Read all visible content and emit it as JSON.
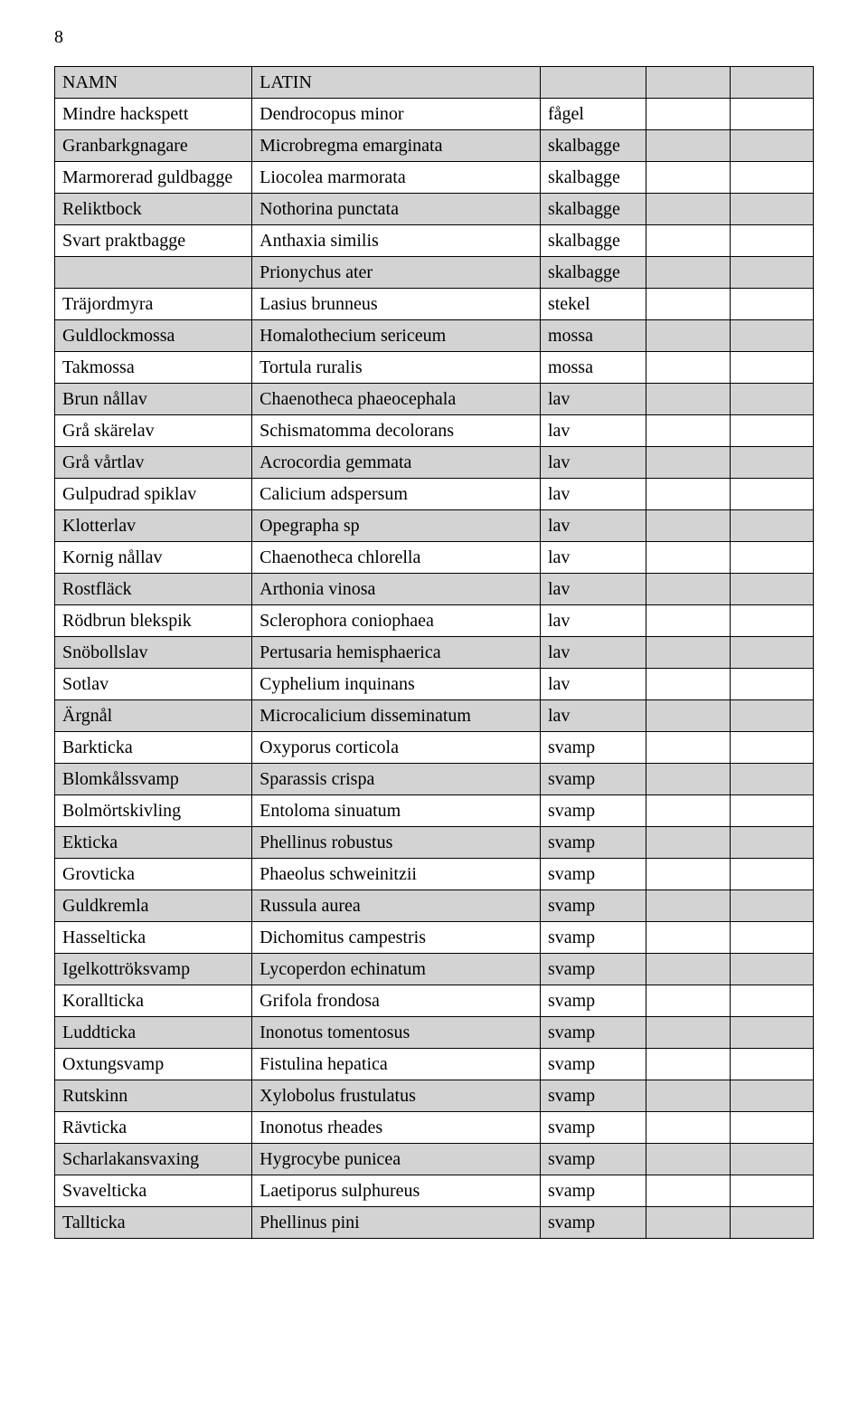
{
  "page_number": "8",
  "headers": {
    "col1": "NAMN",
    "col2": "LATIN",
    "col3": "",
    "col4": "",
    "col5": ""
  },
  "colors": {
    "shaded_bg": "#d3d3d3",
    "border": "#000000",
    "page_bg": "#ffffff"
  },
  "rows": [
    {
      "shaded": false,
      "name": "Mindre hackspett",
      "latin": "Dendrocopus minor",
      "cat": "fågel"
    },
    {
      "shaded": true,
      "name": "Granbarkgnagare",
      "latin": "Microbregma emarginata",
      "cat": "skalbagge"
    },
    {
      "shaded": false,
      "name": "Marmorerad guldbagge",
      "latin": "Liocolea marmorata",
      "cat": "skalbagge"
    },
    {
      "shaded": true,
      "name": "Reliktbock",
      "latin": "Nothorina punctata",
      "cat": "skalbagge"
    },
    {
      "shaded": false,
      "name": "Svart praktbagge",
      "latin": "Anthaxia similis",
      "cat": "skalbagge"
    },
    {
      "shaded": true,
      "name": "",
      "latin": "Prionychus ater",
      "cat": "skalbagge"
    },
    {
      "shaded": false,
      "name": "Träjordmyra",
      "latin": "Lasius brunneus",
      "cat": "stekel"
    },
    {
      "shaded": true,
      "name": "Guldlockmossa",
      "latin": "Homalothecium sericeum",
      "cat": "mossa"
    },
    {
      "shaded": false,
      "name": "Takmossa",
      "latin": "Tortula ruralis",
      "cat": "mossa"
    },
    {
      "shaded": true,
      "name": "Brun nållav",
      "latin": "Chaenotheca phaeocephala",
      "cat": "lav"
    },
    {
      "shaded": false,
      "name": "Grå skärelav",
      "latin": "Schismatomma decolorans",
      "cat": "lav"
    },
    {
      "shaded": true,
      "name": "Grå vårtlav",
      "latin": "Acrocordia gemmata",
      "cat": "lav"
    },
    {
      "shaded": false,
      "name": "Gulpudrad spiklav",
      "latin": "Calicium adspersum",
      "cat": "lav"
    },
    {
      "shaded": true,
      "name": "Klotterlav",
      "latin": "Opegrapha sp",
      "cat": "lav"
    },
    {
      "shaded": false,
      "name": "Kornig nållav",
      "latin": "Chaenotheca chlorella",
      "cat": "lav"
    },
    {
      "shaded": true,
      "name": "Rostfläck",
      "latin": "Arthonia vinosa",
      "cat": "lav"
    },
    {
      "shaded": false,
      "name": "Rödbrun blekspik",
      "latin": "Sclerophora coniophaea",
      "cat": "lav"
    },
    {
      "shaded": true,
      "name": "Snöbollslav",
      "latin": "Pertusaria hemisphaerica",
      "cat": "lav"
    },
    {
      "shaded": false,
      "name": "Sotlav",
      "latin": "Cyphelium inquinans",
      "cat": "lav"
    },
    {
      "shaded": true,
      "name": "Ärgnål",
      "latin": "Microcalicium disseminatum",
      "cat": "lav"
    },
    {
      "shaded": false,
      "name": "Barkticka",
      "latin": "Oxyporus corticola",
      "cat": "svamp"
    },
    {
      "shaded": true,
      "name": "Blomkålssvamp",
      "latin": "Sparassis crispa",
      "cat": "svamp"
    },
    {
      "shaded": false,
      "name": "Bolmörtskivling",
      "latin": "Entoloma sinuatum",
      "cat": "svamp"
    },
    {
      "shaded": true,
      "name": "Ekticka",
      "latin": "Phellinus robustus",
      "cat": "svamp"
    },
    {
      "shaded": false,
      "name": "Grovticka",
      "latin": "Phaeolus schweinitzii",
      "cat": "svamp"
    },
    {
      "shaded": true,
      "name": "Guldkremla",
      "latin": "Russula aurea",
      "cat": "svamp"
    },
    {
      "shaded": false,
      "name": "Hasselticka",
      "latin": "Dichomitus campestris",
      "cat": "svamp"
    },
    {
      "shaded": true,
      "name": "Igelkottröksvamp",
      "latin": "Lycoperdon echinatum",
      "cat": "svamp"
    },
    {
      "shaded": false,
      "name": "Korallticka",
      "latin": "Grifola frondosa",
      "cat": "svamp"
    },
    {
      "shaded": true,
      "name": "Luddticka",
      "latin": "Inonotus tomentosus",
      "cat": "svamp"
    },
    {
      "shaded": false,
      "name": "Oxtungsvamp",
      "latin": "Fistulina hepatica",
      "cat": "svamp"
    },
    {
      "shaded": true,
      "name": "Rutskinn",
      "latin": "Xylobolus frustulatus",
      "cat": "svamp"
    },
    {
      "shaded": false,
      "name": "Rävticka",
      "latin": "Inonotus rheades",
      "cat": "svamp"
    },
    {
      "shaded": true,
      "name": "Scharlakansvaxing",
      "latin": "Hygrocybe punicea",
      "cat": "svamp"
    },
    {
      "shaded": false,
      "name": "Svavelticka",
      "latin": "Laetiporus sulphureus",
      "cat": "svamp"
    },
    {
      "shaded": true,
      "name": "Tallticka",
      "latin": "Phellinus pini",
      "cat": "svamp"
    }
  ]
}
